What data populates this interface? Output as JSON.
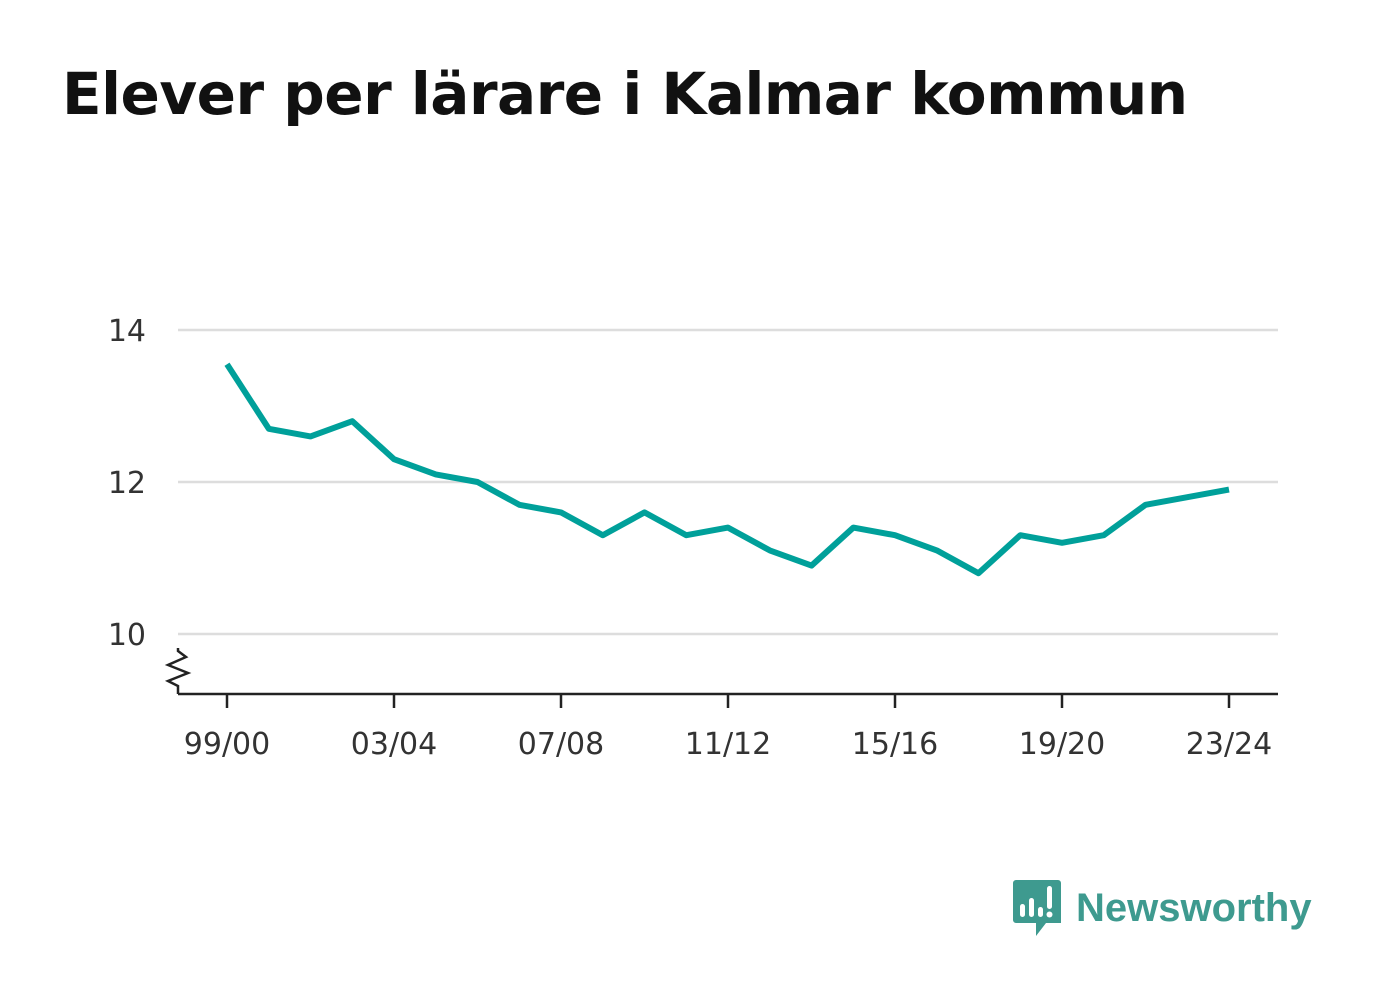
{
  "title": "Elever per lärare i Kalmar kommun",
  "brand": {
    "name": "Newsworthy",
    "icon": "newsworthy-logo-icon",
    "color": "#3e9a8f"
  },
  "chart_data": {
    "type": "line",
    "title": "Elever per lärare i Kalmar kommun",
    "xlabel": "",
    "ylabel": "",
    "x": [
      "99/00",
      "00/01",
      "01/02",
      "02/03",
      "03/04",
      "04/05",
      "05/06",
      "06/07",
      "07/08",
      "08/09",
      "09/10",
      "10/11",
      "11/12",
      "12/13",
      "13/14",
      "14/15",
      "15/16",
      "16/17",
      "17/18",
      "18/19",
      "19/20",
      "20/21",
      "21/22",
      "22/23",
      "23/24"
    ],
    "x_tick_labels": [
      "99/00",
      "03/04",
      "07/08",
      "11/12",
      "15/16",
      "19/20",
      "23/24"
    ],
    "series": [
      {
        "name": "",
        "color": "#00a09a",
        "values": [
          13.55,
          12.7,
          12.6,
          12.8,
          12.3,
          12.1,
          12.0,
          11.7,
          11.6,
          11.3,
          11.6,
          11.3,
          11.4,
          11.1,
          10.9,
          11.4,
          11.3,
          11.1,
          10.8,
          11.3,
          11.2,
          11.3,
          11.7,
          11.8,
          11.9
        ]
      }
    ],
    "y_ticks": [
      10,
      12,
      14
    ],
    "ylim": [
      9.2,
      14.2
    ],
    "grid": true,
    "y_axis_break": true,
    "legend": "none"
  }
}
